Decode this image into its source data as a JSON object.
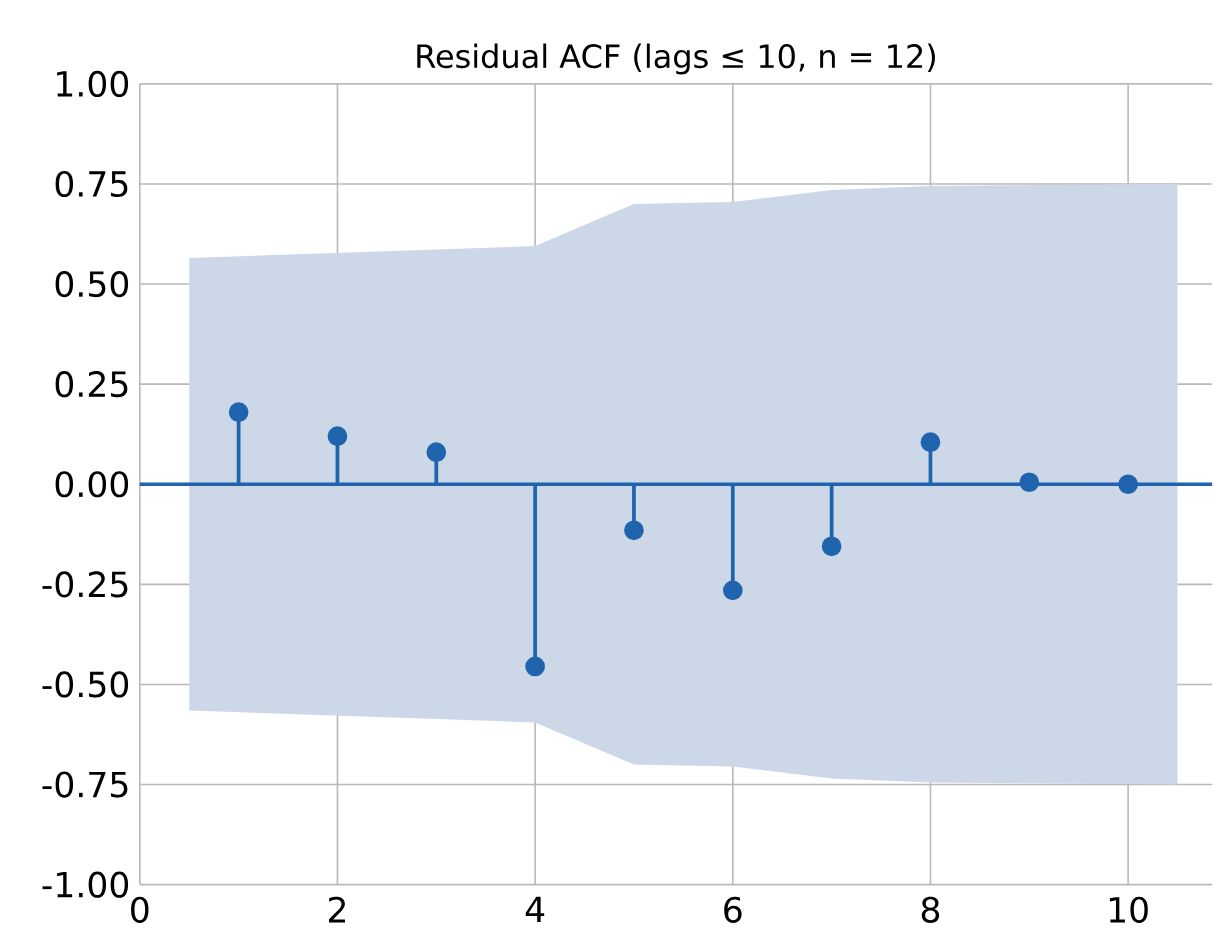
{
  "chart_data": {
    "type": "lollipop",
    "title": "Residual ACF (lags ≤ 10, n = 12)",
    "x": [
      1,
      2,
      3,
      4,
      5,
      6,
      7,
      8,
      9,
      10
    ],
    "series": [
      {
        "type": "area",
        "color": "#ccd7e7",
        "x": [
          0.5,
          4,
          5,
          6,
          7,
          8,
          10.5
        ],
        "values": [
          null,
          null,
          null,
          null,
          null,
          null,
          null
        ],
        "lower": [
          -0.565,
          -0.595,
          -0.7,
          -0.705,
          -0.735,
          -0.745,
          -0.75
        ],
        "upper": [
          0.565,
          0.595,
          0.7,
          0.705,
          0.735,
          0.745,
          0.75
        ]
      },
      {
        "color": "#1f64ad",
        "values": [
          0.18,
          0.12,
          0.08,
          -0.455,
          -0.115,
          -0.265,
          -0.155,
          0.105,
          0.005,
          0.0
        ]
      }
    ],
    "ref_lines": [
      {
        "axis": "y",
        "value": 0,
        "color": "#1f64ad"
      }
    ],
    "marker": "circle",
    "grid": true,
    "xlim": [
      0,
      10.85
    ],
    "ylim": [
      -1,
      1
    ],
    "xticks": [
      0,
      2,
      4,
      6,
      8,
      10
    ],
    "yticks": [
      {
        "value": -1,
        "label": "-1.00"
      },
      {
        "value": -0.75,
        "label": "-0.75"
      },
      {
        "value": -0.5,
        "label": "-0.50"
      },
      {
        "value": -0.25,
        "label": "-0.25"
      },
      {
        "value": 0,
        "label": "0.00"
      },
      {
        "value": 0.25,
        "label": "0.25"
      },
      {
        "value": 0.5,
        "label": "0.50"
      },
      {
        "value": 0.75,
        "label": "0.75"
      },
      {
        "value": 1,
        "label": "1.00"
      }
    ]
  }
}
